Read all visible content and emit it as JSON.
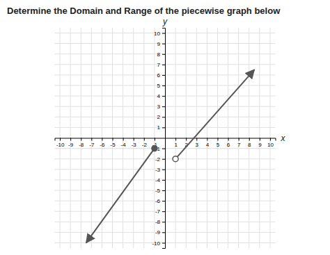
{
  "chart_data": {
    "type": "line",
    "title": "Determine the Domain and Range of the piecewise graph below",
    "x_label": "x",
    "y_label": "y",
    "xlim": [
      -10.5,
      10.5
    ],
    "ylim": [
      -10.5,
      10.5
    ],
    "xticks": [
      -10,
      -9,
      -8,
      -7,
      -6,
      -5,
      -4,
      -3,
      -2,
      -1,
      1,
      2,
      3,
      4,
      5,
      6,
      7,
      8,
      9,
      10
    ],
    "yticks": [
      -10,
      -9,
      -8,
      -7,
      -6,
      -5,
      -4,
      -3,
      -2,
      -1,
      1,
      2,
      3,
      4,
      5,
      6,
      7,
      8,
      9,
      10
    ],
    "grid": true,
    "series": [
      {
        "x": [
          -1,
          -7.5
        ],
        "values": [
          -1,
          -10
        ],
        "color": "#555555",
        "marker": "closed"
      },
      {
        "x": [
          1,
          8.5
        ],
        "values": [
          -2,
          6.5
        ],
        "color": "#555555",
        "marker": "open"
      }
    ]
  }
}
